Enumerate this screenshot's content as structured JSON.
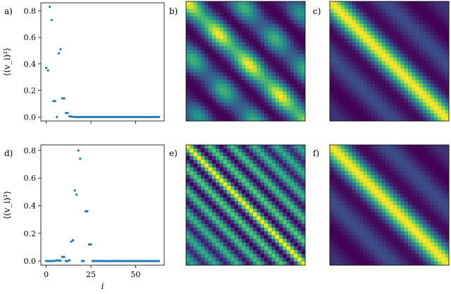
{
  "panel_labels": [
    "a)",
    "b)",
    "c)",
    "d)",
    "e)",
    "f)"
  ],
  "colors": {
    "point": "#1f77b4",
    "viridis": [
      "#440154",
      "#3b528b",
      "#21918c",
      "#5ec962",
      "#fde725"
    ]
  },
  "chart_data": [
    {
      "panel": "a)",
      "type": "scatter",
      "xlabel": "",
      "ylabel": "⟨(v_i)²⟩",
      "xlim": [
        -3,
        66
      ],
      "ylim": [
        -0.03,
        0.86
      ],
      "xticks": [
        0,
        25,
        50
      ],
      "xticklabels_visible": false,
      "yticks": [
        0.0,
        0.2,
        0.4,
        0.6,
        0.8
      ],
      "x": [
        0,
        1,
        2,
        3,
        4,
        5,
        6,
        7,
        8,
        9,
        10,
        11,
        12,
        13,
        14,
        15,
        16,
        17,
        18,
        19,
        20,
        21,
        22,
        23,
        24,
        25,
        26,
        27,
        28,
        29,
        30,
        31,
        32,
        33,
        34,
        35,
        36,
        37,
        38,
        39,
        40,
        41,
        42,
        43,
        44,
        45,
        46,
        47,
        48,
        49,
        50,
        51,
        52,
        53,
        54,
        55,
        56,
        57,
        58,
        59,
        60,
        61,
        62,
        63
      ],
      "y": [
        0.37,
        0.35,
        0.83,
        0.73,
        0.12,
        0.12,
        0.0,
        0.48,
        0.51,
        0.14,
        0.14,
        0.03,
        0.03,
        0.005,
        0.003,
        0.001,
        0,
        0,
        0,
        0,
        0,
        0,
        0,
        0,
        0,
        0,
        0,
        0,
        0,
        0,
        0,
        0,
        0,
        0,
        0,
        0,
        0,
        0,
        0,
        0,
        0,
        0,
        0,
        0,
        0,
        0,
        0,
        0,
        0,
        0,
        0,
        0,
        0,
        0,
        0,
        0,
        0,
        0,
        0,
        0,
        0,
        0,
        0,
        0
      ],
      "grid": false
    },
    {
      "panel": "b)",
      "type": "heatmap",
      "description_free": true,
      "pattern": "band_checker",
      "grid": false
    },
    {
      "panel": "c)",
      "type": "heatmap",
      "pattern": "band_smooth",
      "grid": false
    },
    {
      "panel": "d)",
      "type": "scatter",
      "xlabel": "i",
      "ylabel": "⟨(v_i)²⟩",
      "xlim": [
        -3,
        66
      ],
      "ylim": [
        -0.03,
        0.84
      ],
      "xticks": [
        0,
        25,
        50
      ],
      "xticklabels": [
        "0",
        "25",
        "50"
      ],
      "yticks": [
        0.0,
        0.2,
        0.4,
        0.6,
        0.8
      ],
      "x": [
        0,
        1,
        2,
        3,
        4,
        5,
        6,
        7,
        8,
        9,
        10,
        11,
        12,
        13,
        14,
        15,
        16,
        17,
        18,
        19,
        20,
        21,
        22,
        23,
        24,
        25,
        26,
        27,
        28,
        29,
        30,
        31,
        32,
        33,
        34,
        35,
        36,
        37,
        38,
        39,
        40,
        41,
        42,
        43,
        44,
        45,
        46,
        47,
        48,
        49,
        50,
        51,
        52,
        53,
        54,
        55,
        56,
        57,
        58,
        59,
        60,
        61,
        62,
        63
      ],
      "y": [
        0,
        0,
        0,
        0,
        0,
        0.002,
        0.005,
        0.004,
        0.002,
        0.03,
        0.03,
        0,
        0,
        0.005,
        0.14,
        0.15,
        0.51,
        0.48,
        0.8,
        0.74,
        0,
        0,
        0.36,
        0.36,
        0.12,
        0.12,
        0,
        0,
        0,
        0,
        0,
        0,
        0,
        0,
        0,
        0,
        0,
        0,
        0,
        0,
        0,
        0,
        0,
        0,
        0,
        0,
        0,
        0,
        0,
        0,
        0,
        0,
        0,
        0,
        0,
        0,
        0,
        0,
        0,
        0,
        0,
        0,
        0,
        0
      ],
      "grid": false
    },
    {
      "panel": "e)",
      "type": "heatmap",
      "pattern": "fine_bands",
      "grid": false
    },
    {
      "panel": "f)",
      "type": "heatmap",
      "pattern": "band_smooth",
      "grid": false
    }
  ]
}
